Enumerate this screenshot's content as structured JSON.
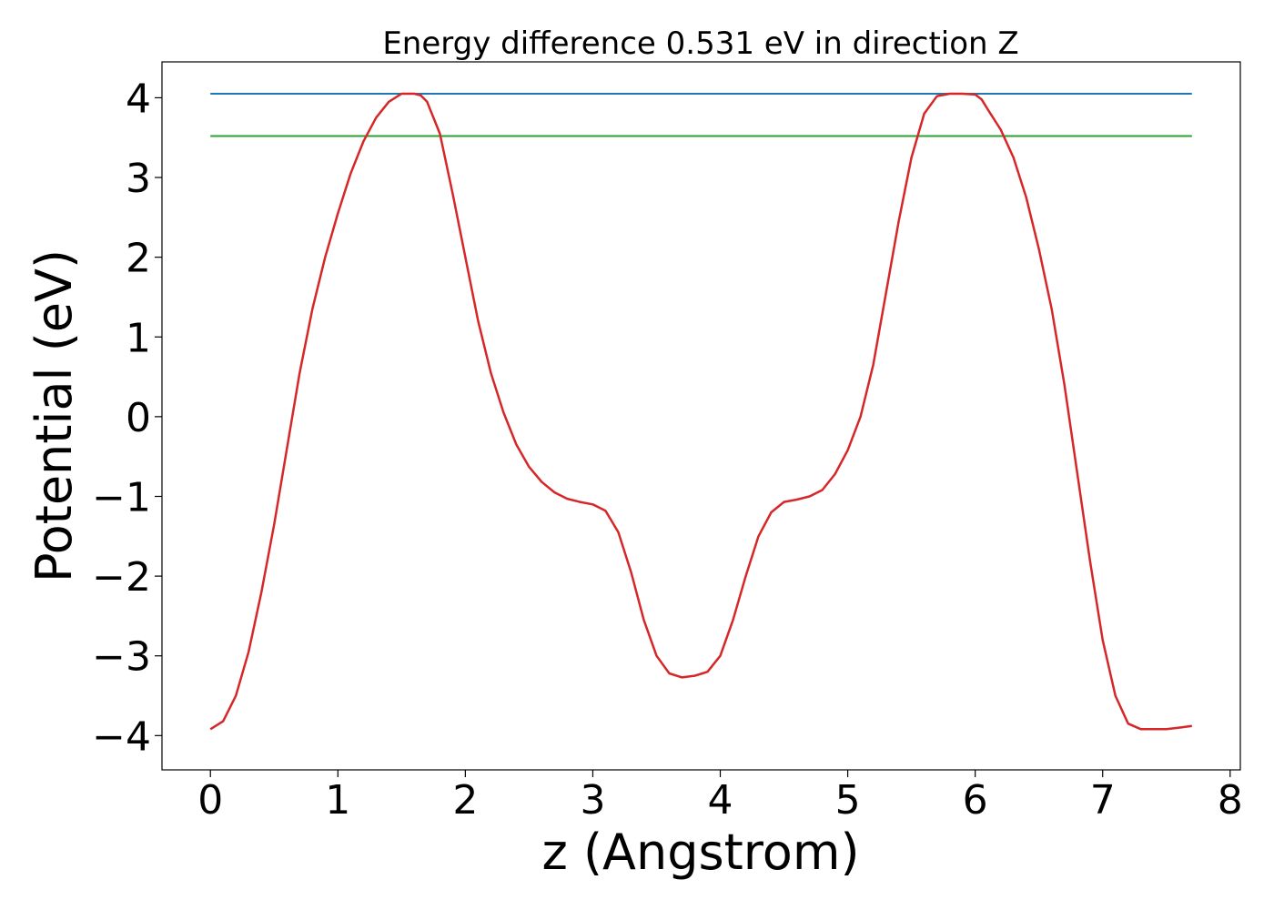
{
  "chart_data": {
    "type": "line",
    "title": "Energy difference 0.531 eV in direction Z",
    "xlabel": "z (Angstrom)",
    "ylabel": "Potential (eV)",
    "xlim": [
      -0.38,
      8.08
    ],
    "ylim": [
      -4.43,
      4.45
    ],
    "xticks": [
      0,
      1,
      2,
      3,
      4,
      5,
      6,
      7,
      8
    ],
    "yticks": [
      -4,
      -3,
      -2,
      -1,
      0,
      1,
      2,
      3,
      4
    ],
    "xtick_labels": [
      "0",
      "1",
      "2",
      "3",
      "4",
      "5",
      "6",
      "7",
      "8"
    ],
    "ytick_labels": [
      "−4",
      "−3",
      "−2",
      "−1",
      "0",
      "1",
      "2",
      "3",
      "4"
    ],
    "grid": false,
    "series": [
      {
        "color": "#1f77b4",
        "x": [
          0,
          7.7
        ],
        "y": [
          4.05,
          4.05
        ]
      },
      {
        "color": "#2ca02c",
        "x": [
          0,
          7.7
        ],
        "y": [
          3.52,
          3.52
        ]
      },
      {
        "color": "#d62728",
        "x": [
          0.0,
          0.1,
          0.2,
          0.3,
          0.4,
          0.5,
          0.6,
          0.7,
          0.8,
          0.9,
          1.0,
          1.1,
          1.2,
          1.3,
          1.4,
          1.5,
          1.6,
          1.65,
          1.7,
          1.8,
          1.9,
          2.0,
          2.1,
          2.2,
          2.3,
          2.4,
          2.5,
          2.6,
          2.7,
          2.8,
          2.9,
          3.0,
          3.1,
          3.2,
          3.3,
          3.4,
          3.5,
          3.6,
          3.7,
          3.8,
          3.86,
          3.9,
          4.0,
          4.1,
          4.2,
          4.3,
          4.4,
          4.5,
          4.6,
          4.7,
          4.8,
          4.9,
          5.0,
          5.1,
          5.2,
          5.3,
          5.4,
          5.5,
          5.6,
          5.7,
          5.8,
          5.9,
          6.0,
          6.05,
          6.1,
          6.2,
          6.3,
          6.4,
          6.5,
          6.6,
          6.7,
          6.8,
          6.9,
          7.0,
          7.1,
          7.2,
          7.3,
          7.4,
          7.5,
          7.6,
          7.7
        ],
        "y": [
          -3.92,
          -3.82,
          -3.5,
          -2.95,
          -2.2,
          -1.35,
          -0.4,
          0.55,
          1.35,
          2.0,
          2.55,
          3.05,
          3.45,
          3.75,
          3.95,
          4.05,
          4.05,
          4.03,
          3.95,
          3.55,
          2.8,
          2.0,
          1.2,
          0.55,
          0.05,
          -0.35,
          -0.63,
          -0.82,
          -0.95,
          -1.03,
          -1.07,
          -1.1,
          -1.18,
          -1.45,
          -1.95,
          -2.55,
          -3.0,
          -3.22,
          -3.27,
          -3.25,
          -3.22,
          -3.2,
          -3.0,
          -2.55,
          -2.0,
          -1.5,
          -1.2,
          -1.07,
          -1.04,
          -1.0,
          -0.92,
          -0.72,
          -0.42,
          0.0,
          0.65,
          1.55,
          2.45,
          3.25,
          3.8,
          4.02,
          4.05,
          4.05,
          4.04,
          3.98,
          3.85,
          3.6,
          3.25,
          2.75,
          2.1,
          1.35,
          0.4,
          -0.7,
          -1.8,
          -2.8,
          -3.5,
          -3.85,
          -3.92,
          -3.92,
          -3.92,
          -3.9,
          -3.88
        ]
      }
    ]
  }
}
